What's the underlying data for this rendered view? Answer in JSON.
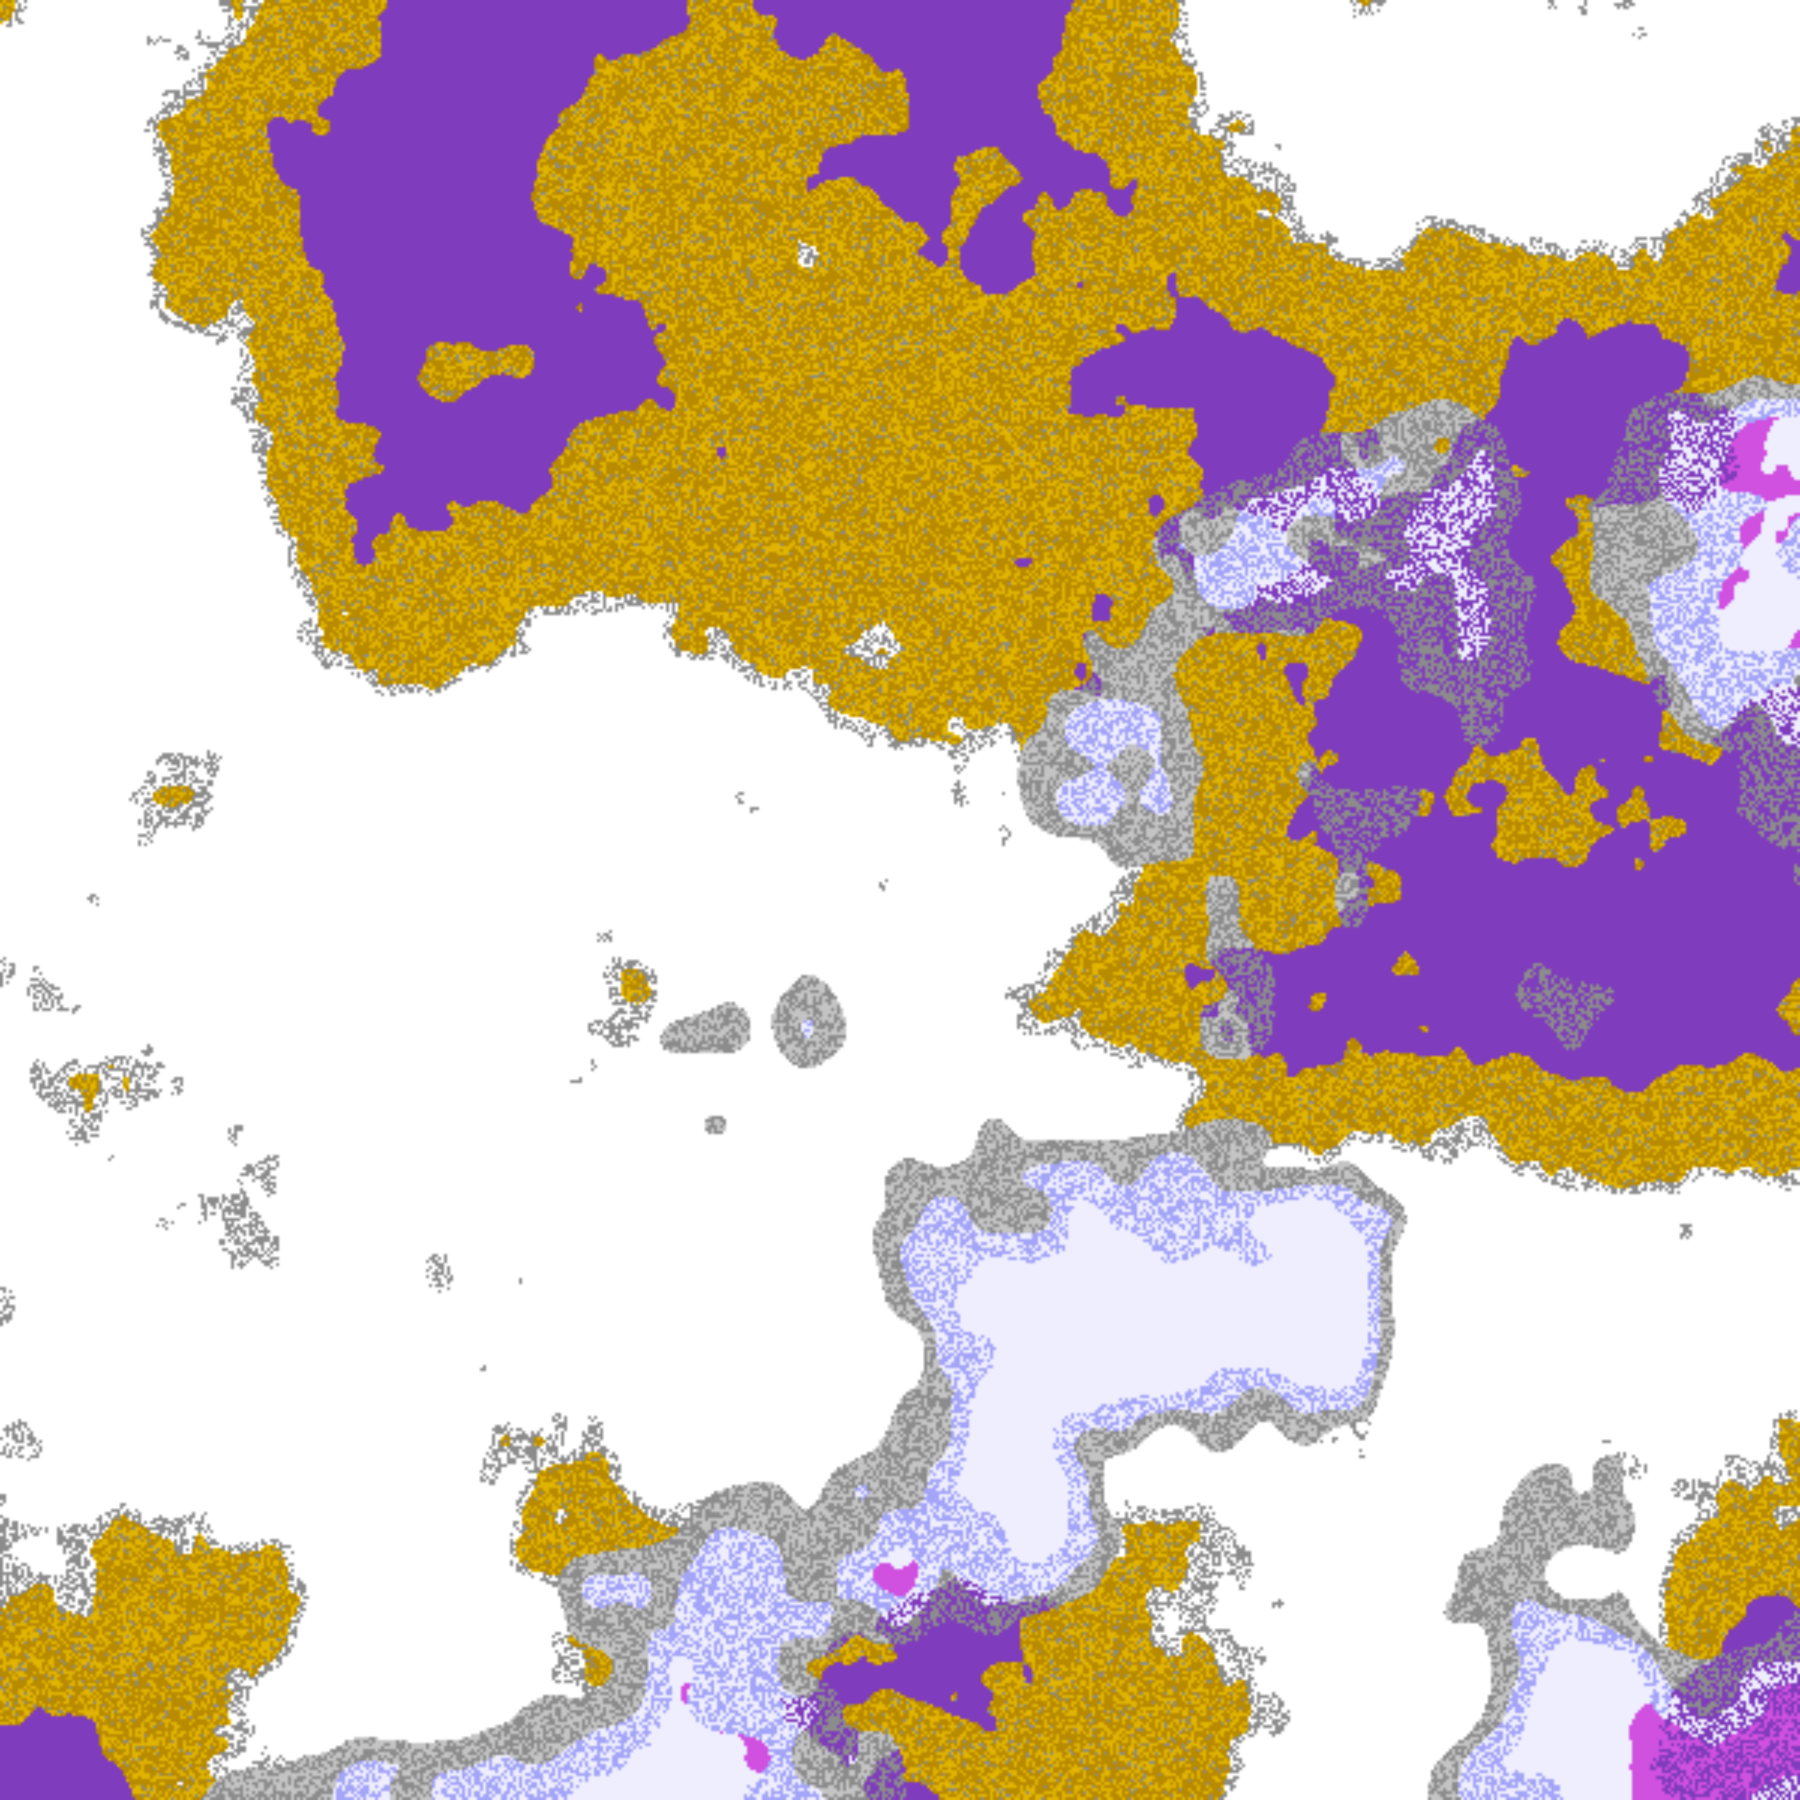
{
  "image": {
    "kind": "false-color satellite cloud classification",
    "palette": {
      "clear": "#ffffff",
      "coastline": "#9a9a9a",
      "gold_dark": "#b88a00",
      "gold_light": "#e0b400",
      "gray_dark": "#8c8c8c",
      "gray_light": "#c4c4c4",
      "lavender": "#a4a4f8",
      "pale_blue": "#eeeeff",
      "magenta": "#d050e0",
      "purple": "#7f3cbc"
    }
  }
}
